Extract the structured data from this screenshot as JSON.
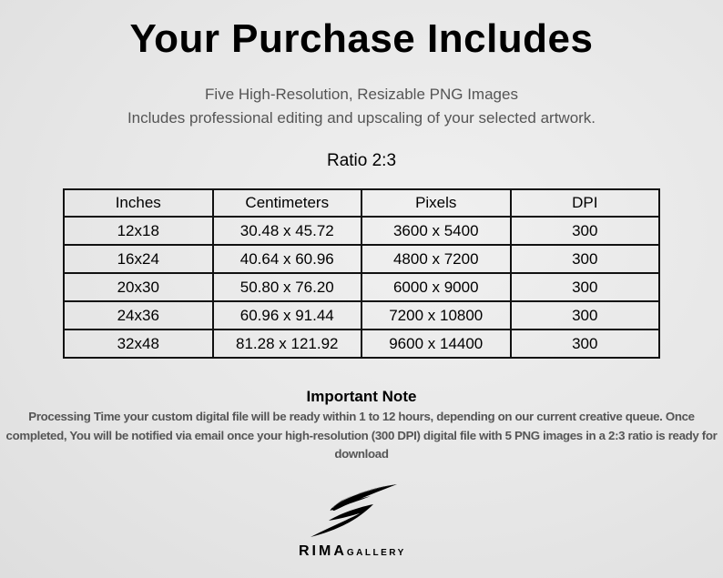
{
  "title": "Your Purchase Includes",
  "subtitle_1": "Five High-Resolution, Resizable PNG Images",
  "subtitle_2": "Includes professional editing and upscaling of your selected artwork.",
  "ratio_label": "Ratio 2:3",
  "table": {
    "headers": [
      "Inches",
      "Centimeters",
      "Pixels",
      "DPI"
    ],
    "rows": [
      [
        "12x18",
        "30.48 x 45.72",
        "3600 x 5400",
        "300"
      ],
      [
        "16x24",
        "40.64 x 60.96",
        "4800 x 7200",
        "300"
      ],
      [
        "20x30",
        "50.80 x 76.20",
        "6000 x 9000",
        "300"
      ],
      [
        "24x36",
        "60.96 x 91.44",
        "7200 x 10800",
        "300"
      ],
      [
        "32x48",
        "81.28 x 121.92",
        "9600 x 14400",
        "300"
      ]
    ]
  },
  "note": {
    "title": "Important Note",
    "body": "Processing Time your custom digital file will be ready within 1 to 12 hours, depending on our current creative queue. Once completed, You will be notified via email once your high-resolution (300 DPI) digital file with 5 PNG images in a 2:3 ratio is ready for download"
  },
  "logo": {
    "text_main": "RIMA",
    "text_sub": "GALLERY"
  }
}
